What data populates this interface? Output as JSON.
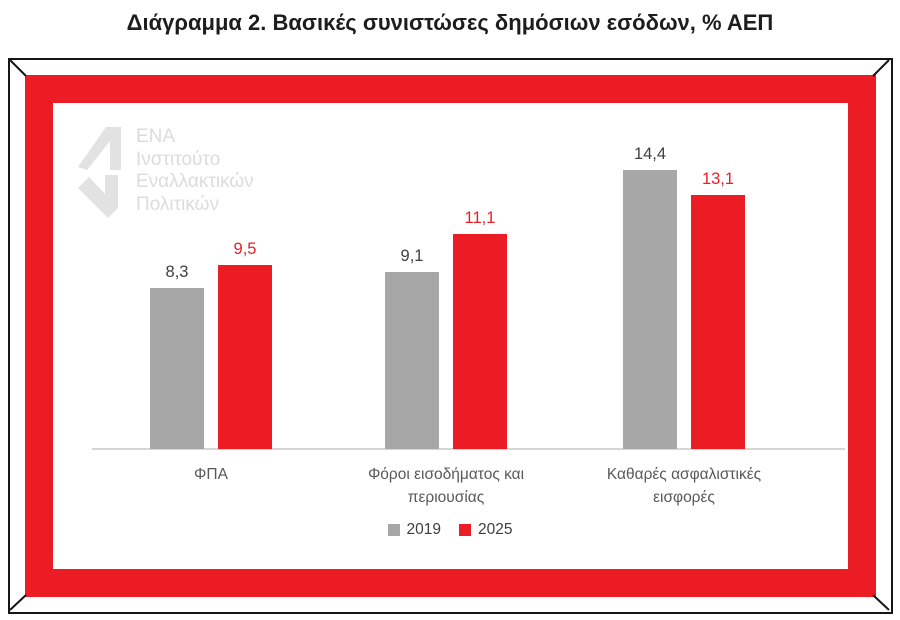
{
  "title": "Διάγραμμα 2. Βασικές συνιστώσες δημόσιων εσόδων, % ΑΕΠ",
  "logo": {
    "lines": [
      "ΕΝΑ",
      "Ινστιτούτο",
      "Εναλλακτικών",
      "Πολιτικών"
    ],
    "color": "#e0e0e0"
  },
  "colors": {
    "frame_red": "#ec1c24",
    "frame_black": "#161616",
    "axis_gray": "#d6d6d6"
  },
  "chart_data": {
    "type": "bar",
    "title": "Διάγραμμα 2. Βασικές συνιστώσες δημόσιων εσόδων, % ΑΕΠ",
    "categories": [
      "ΦΠΑ",
      "Φόροι εισοδήματος και περιουσίας",
      "Καθαρές ασφαλιστικές εισφορές"
    ],
    "series": [
      {
        "name": "2019",
        "color": "#a7a7a7",
        "label_color": "#404040",
        "values": [
          8.3,
          9.1,
          14.4
        ],
        "labels": [
          "8,3",
          "9,1",
          "14,4"
        ]
      },
      {
        "name": "2025",
        "color": "#ec1c24",
        "label_color": "#ec1c24",
        "values": [
          9.5,
          11.1,
          13.1
        ],
        "labels": [
          "9,5",
          "11,1",
          "13,1"
        ]
      }
    ],
    "xlabel": "",
    "ylabel": "",
    "ylim": [
      0,
      16
    ],
    "grid": false,
    "y_axis_visible": false,
    "legend_position": "bottom",
    "value_format": "comma-decimal"
  }
}
